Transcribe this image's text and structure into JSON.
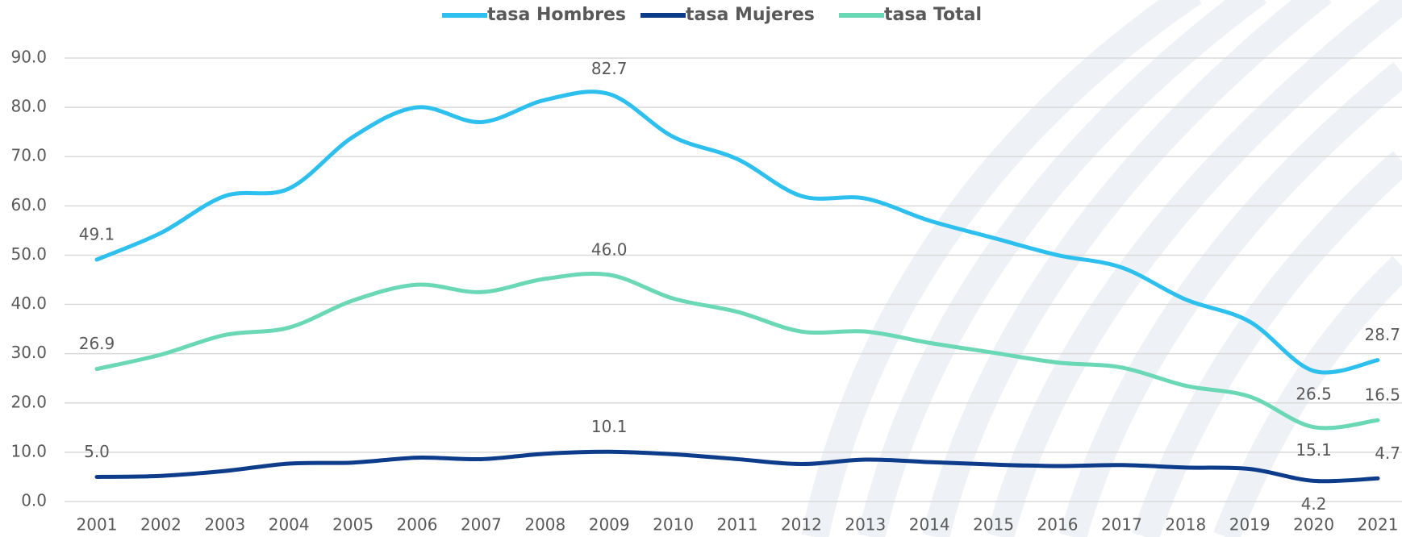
{
  "chart_data": {
    "type": "line",
    "categories": [
      "2001",
      "2002",
      "2003",
      "2004",
      "2005",
      "2006",
      "2007",
      "2008",
      "2009",
      "2010",
      "2011",
      "2012",
      "2013",
      "2014",
      "2015",
      "2016",
      "2017",
      "2018",
      "2019",
      "2020",
      "2021"
    ],
    "series": [
      {
        "name": "tasa Hombres",
        "color": "#2dbfee",
        "values": [
          49.1,
          54.5,
          62.0,
          63.5,
          74.0,
          80.0,
          77.0,
          81.5,
          82.7,
          74.0,
          69.5,
          62.0,
          61.5,
          57.0,
          53.5,
          50.0,
          47.5,
          41.0,
          36.5,
          26.5,
          28.7
        ],
        "value_labels": [
          "49.1",
          null,
          null,
          null,
          null,
          null,
          null,
          null,
          "82.7",
          null,
          null,
          null,
          null,
          null,
          null,
          null,
          null,
          null,
          null,
          "26.5",
          "28.7"
        ]
      },
      {
        "name": "tasa Mujeres",
        "color": "#0d3c8a",
        "values": [
          5.0,
          5.2,
          6.2,
          7.7,
          7.9,
          8.9,
          8.6,
          9.7,
          10.1,
          9.6,
          8.6,
          7.6,
          8.5,
          8.0,
          7.5,
          7.2,
          7.4,
          6.9,
          6.6,
          4.2,
          4.7
        ],
        "value_labels": [
          "5.0",
          null,
          null,
          null,
          null,
          null,
          null,
          null,
          "10.1",
          null,
          null,
          null,
          null,
          null,
          null,
          null,
          null,
          null,
          null,
          "4.2",
          "4.7"
        ]
      },
      {
        "name": "tasa Total",
        "color": "#6ad8b4",
        "values": [
          26.9,
          29.8,
          33.8,
          35.3,
          40.8,
          44.0,
          42.5,
          45.2,
          46.0,
          41.2,
          38.5,
          34.5,
          34.5,
          32.2,
          30.2,
          28.2,
          27.2,
          23.5,
          21.3,
          15.1,
          16.5
        ],
        "value_labels": [
          "26.9",
          null,
          null,
          null,
          null,
          null,
          null,
          null,
          "46.0",
          null,
          null,
          null,
          null,
          null,
          null,
          null,
          null,
          null,
          null,
          "15.1",
          "16.5"
        ]
      }
    ],
    "ylim": [
      0,
      90
    ],
    "yticks": [
      {
        "value": 0,
        "label": "0.0"
      },
      {
        "value": 10,
        "label": "10.0"
      },
      {
        "value": 20,
        "label": "20.0"
      },
      {
        "value": 30,
        "label": "30.0"
      },
      {
        "value": 40,
        "label": "40.0"
      },
      {
        "value": 50,
        "label": "50.0"
      },
      {
        "value": 60,
        "label": "60.0"
      },
      {
        "value": 70,
        "label": "70.0"
      },
      {
        "value": 80,
        "label": "80.0"
      },
      {
        "value": 90,
        "label": "90.0"
      }
    ],
    "grid": true,
    "legend": "top"
  }
}
